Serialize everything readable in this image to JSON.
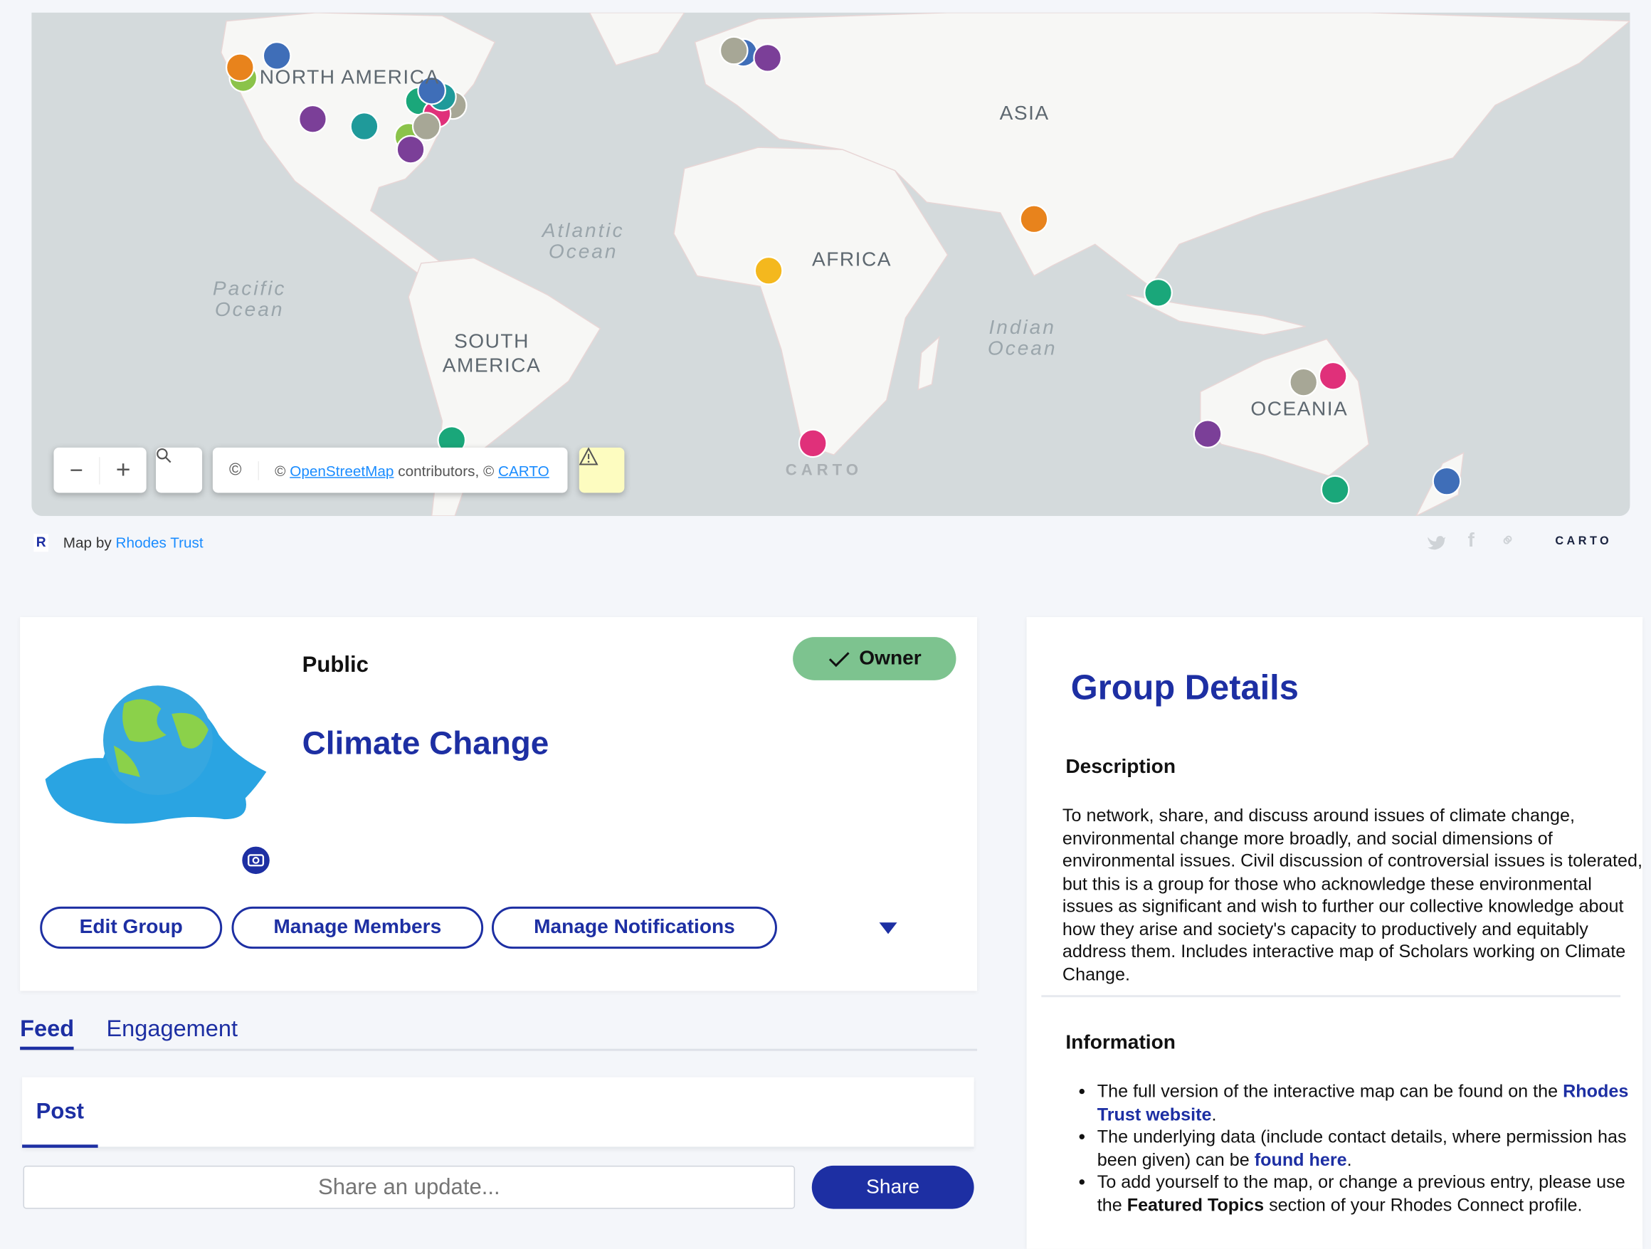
{
  "map": {
    "continent_labels": [
      "NORTH AMERICA",
      "SOUTH AMERICA",
      "AFRICA",
      "ASIA",
      "OCEANIA"
    ],
    "ocean_labels": [
      "Pacific Ocean",
      "Atlantic Ocean",
      "Indian Ocean"
    ],
    "watermark": "CARTO",
    "zoom_out": "−",
    "zoom_in": "+",
    "attribution_prefix": "©",
    "attribution_osm": "OpenStreetMap",
    "attribution_mid": "contributors, ©",
    "attribution_carto": "CARTO",
    "marker_colors": {
      "orange": "#e8831c",
      "green": "#1aa77a",
      "blue": "#3f6eb8",
      "purple": "#7b3f98",
      "teal": "#1f9a9a",
      "pink": "#e0307a",
      "gray": "#a7a796",
      "yellow": "#f4b81e",
      "lime": "#8bc34a"
    }
  },
  "map_footer": {
    "map_by": "Map by",
    "author": "Rhodes Trust",
    "carto_logo": "CARTO"
  },
  "group": {
    "visibility": "Public",
    "owner_badge": "Owner",
    "title": "Climate Change",
    "buttons": [
      "Edit Group",
      "Manage Members",
      "Manage Notifications"
    ]
  },
  "tabs": [
    "Feed",
    "Engagement"
  ],
  "post": {
    "tab": "Post",
    "placeholder": "Share an update...",
    "share": "Share"
  },
  "details": {
    "title": "Group Details",
    "description_heading": "Description",
    "description": "To network, share, and discuss around issues of climate change, environmental change more broadly, and social dimensions of environmental issues. Civil discussion of controversial issues is tolerated, but this is a group for those who acknowledge these environmental issues as significant and wish to further our collective knowledge about how they arise and society's capacity to productively and equitably address them. Includes interactive map of Scholars working on Climate Change.",
    "information_heading": "Information",
    "info1_text": "The full version of the interactive map can be found on the ",
    "info1_link": "Rhodes Trust website",
    "info2_text": "The underlying data (include contact details, where permission has been given) can be ",
    "info2_link": "found here",
    "info3_text": "To add yourself to the map, or change a previous entry, please use the ",
    "info3_bold": "Featured Topics",
    "info3_end": " section of your Rhodes Connect profile.",
    "period": "."
  }
}
